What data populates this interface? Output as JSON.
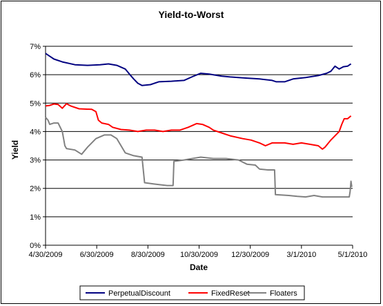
{
  "chart_data": {
    "type": "line",
    "title": "Yield-to-Worst",
    "xlabel": "Date",
    "ylabel": "Yield",
    "ylim": [
      0,
      7
    ],
    "y_ticks": [
      "0%",
      "1%",
      "2%",
      "3%",
      "4%",
      "5%",
      "6%",
      "7%"
    ],
    "x_ticks": [
      "4/30/2009",
      "6/30/2009",
      "8/30/2009",
      "10/30/2009",
      "12/30/2009",
      "3/1/2010",
      "5/1/2010"
    ],
    "x_tick_days": [
      0,
      61,
      122,
      183,
      244,
      305,
      366
    ],
    "xlim_days": [
      0,
      366
    ],
    "grid": "horizontal",
    "legend_position": "bottom",
    "series": [
      {
        "name": "PerpetualDiscount",
        "color": "#000080",
        "points": [
          [
            0,
            6.75
          ],
          [
            5,
            6.65
          ],
          [
            10,
            6.55
          ],
          [
            20,
            6.45
          ],
          [
            35,
            6.35
          ],
          [
            50,
            6.33
          ],
          [
            65,
            6.35
          ],
          [
            75,
            6.38
          ],
          [
            85,
            6.33
          ],
          [
            95,
            6.2
          ],
          [
            100,
            6.02
          ],
          [
            105,
            5.85
          ],
          [
            110,
            5.7
          ],
          [
            115,
            5.62
          ],
          [
            125,
            5.65
          ],
          [
            135,
            5.75
          ],
          [
            150,
            5.77
          ],
          [
            165,
            5.8
          ],
          [
            175,
            5.93
          ],
          [
            185,
            6.05
          ],
          [
            195,
            6.02
          ],
          [
            210,
            5.95
          ],
          [
            220,
            5.92
          ],
          [
            240,
            5.88
          ],
          [
            255,
            5.85
          ],
          [
            270,
            5.8
          ],
          [
            275,
            5.75
          ],
          [
            285,
            5.75
          ],
          [
            295,
            5.85
          ],
          [
            310,
            5.9
          ],
          [
            325,
            5.97
          ],
          [
            335,
            6.05
          ],
          [
            340,
            6.12
          ],
          [
            345,
            6.3
          ],
          [
            350,
            6.2
          ],
          [
            355,
            6.28
          ],
          [
            360,
            6.3
          ],
          [
            364,
            6.38
          ]
        ]
      },
      {
        "name": "FixedReset",
        "color": "#ff0000",
        "points": [
          [
            0,
            4.9
          ],
          [
            5,
            4.92
          ],
          [
            10,
            4.97
          ],
          [
            15,
            4.95
          ],
          [
            20,
            4.82
          ],
          [
            25,
            4.98
          ],
          [
            30,
            4.9
          ],
          [
            40,
            4.8
          ],
          [
            55,
            4.78
          ],
          [
            60,
            4.7
          ],
          [
            63,
            4.4
          ],
          [
            67,
            4.3
          ],
          [
            75,
            4.25
          ],
          [
            80,
            4.15
          ],
          [
            90,
            4.07
          ],
          [
            100,
            4.05
          ],
          [
            110,
            4.0
          ],
          [
            120,
            4.05
          ],
          [
            130,
            4.05
          ],
          [
            140,
            4.0
          ],
          [
            150,
            4.05
          ],
          [
            160,
            4.05
          ],
          [
            170,
            4.15
          ],
          [
            180,
            4.28
          ],
          [
            187,
            4.25
          ],
          [
            195,
            4.15
          ],
          [
            200,
            4.05
          ],
          [
            210,
            3.95
          ],
          [
            220,
            3.85
          ],
          [
            235,
            3.75
          ],
          [
            245,
            3.7
          ],
          [
            255,
            3.6
          ],
          [
            262,
            3.5
          ],
          [
            270,
            3.6
          ],
          [
            285,
            3.6
          ],
          [
            295,
            3.55
          ],
          [
            305,
            3.6
          ],
          [
            315,
            3.55
          ],
          [
            325,
            3.5
          ],
          [
            330,
            3.38
          ],
          [
            333,
            3.45
          ],
          [
            340,
            3.7
          ],
          [
            345,
            3.85
          ],
          [
            350,
            4.0
          ],
          [
            353,
            4.25
          ],
          [
            356,
            4.45
          ],
          [
            360,
            4.45
          ],
          [
            364,
            4.55
          ]
        ]
      },
      {
        "name": "Floaters",
        "color": "#808080",
        "points": [
          [
            0,
            4.5
          ],
          [
            3,
            4.4
          ],
          [
            5,
            4.25
          ],
          [
            10,
            4.3
          ],
          [
            15,
            4.3
          ],
          [
            20,
            4.0
          ],
          [
            23,
            3.5
          ],
          [
            25,
            3.4
          ],
          [
            35,
            3.35
          ],
          [
            43,
            3.2
          ],
          [
            50,
            3.45
          ],
          [
            60,
            3.75
          ],
          [
            70,
            3.88
          ],
          [
            78,
            3.88
          ],
          [
            85,
            3.75
          ],
          [
            90,
            3.5
          ],
          [
            95,
            3.25
          ],
          [
            105,
            3.15
          ],
          [
            115,
            3.1
          ],
          [
            118,
            2.2
          ],
          [
            130,
            2.15
          ],
          [
            145,
            2.1
          ],
          [
            152,
            2.1
          ],
          [
            153,
            2.95
          ],
          [
            165,
            3.0
          ],
          [
            175,
            3.05
          ],
          [
            185,
            3.1
          ],
          [
            200,
            3.05
          ],
          [
            215,
            3.05
          ],
          [
            230,
            3.0
          ],
          [
            240,
            2.85
          ],
          [
            250,
            2.82
          ],
          [
            255,
            2.68
          ],
          [
            265,
            2.65
          ],
          [
            273,
            2.65
          ],
          [
            274,
            1.78
          ],
          [
            290,
            1.75
          ],
          [
            300,
            1.72
          ],
          [
            310,
            1.7
          ],
          [
            320,
            1.75
          ],
          [
            330,
            1.7
          ],
          [
            340,
            1.7
          ],
          [
            350,
            1.7
          ],
          [
            362,
            1.7
          ],
          [
            363,
            1.9
          ],
          [
            364,
            2.25
          ],
          [
            365,
            2.05
          ]
        ]
      }
    ]
  }
}
